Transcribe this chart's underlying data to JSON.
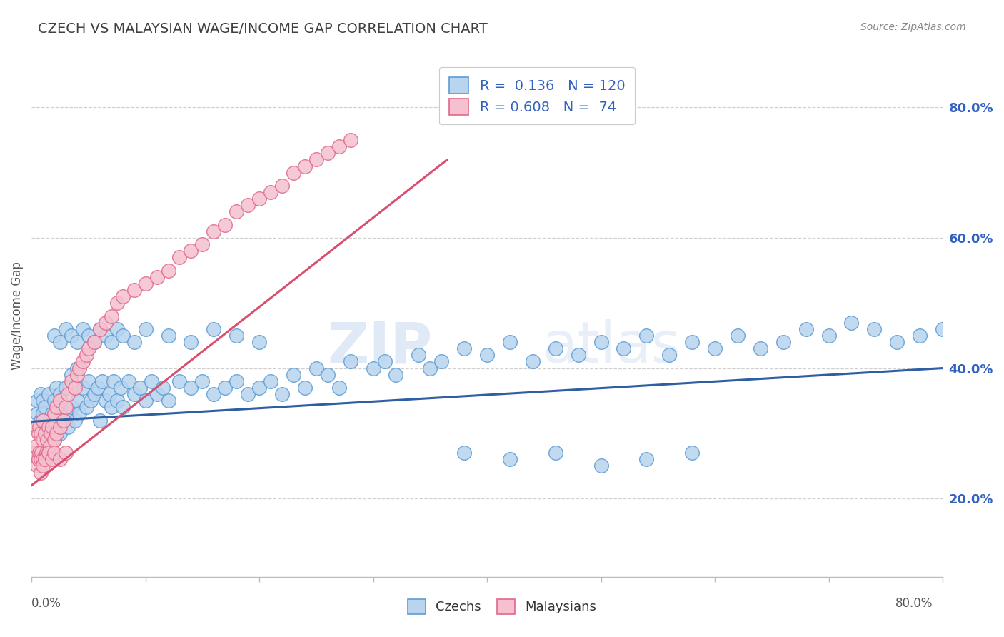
{
  "title": "CZECH VS MALAYSIAN WAGE/INCOME GAP CORRELATION CHART",
  "source_text": "Source: ZipAtlas.com",
  "ylabel": "Wage/Income Gap",
  "xmin": 0.0,
  "xmax": 0.8,
  "ymin": 0.08,
  "ymax": 0.88,
  "czech_color": "#b8d4ee",
  "czech_edge_color": "#5b9bd5",
  "malaysian_color": "#f5c0d0",
  "malaysian_edge_color": "#e06888",
  "trend_czech_color": "#2e5fa3",
  "trend_malaysian_color": "#d85070",
  "legend_text_color": "#3060c0",
  "legend_R_czech": "0.136",
  "legend_N_czech": "120",
  "legend_R_malay": "0.608",
  "legend_N_malay": "74",
  "watermark_zip": "ZIP",
  "watermark_atlas": "atlas",
  "background_color": "#ffffff",
  "grid_color": "#d0d0d0",
  "title_color": "#404040",
  "czech_trend_x0": 0.0,
  "czech_trend_x1": 0.8,
  "czech_trend_y0": 0.318,
  "czech_trend_y1": 0.4,
  "malay_trend_x0": 0.0,
  "malay_trend_x1": 0.365,
  "malay_trend_y0": 0.22,
  "malay_trend_y1": 0.72,
  "czech_x": [
    0.005,
    0.005,
    0.008,
    0.008,
    0.01,
    0.01,
    0.012,
    0.012,
    0.015,
    0.015,
    0.018,
    0.02,
    0.02,
    0.022,
    0.022,
    0.025,
    0.025,
    0.028,
    0.03,
    0.03,
    0.032,
    0.035,
    0.035,
    0.038,
    0.04,
    0.04,
    0.042,
    0.045,
    0.048,
    0.05,
    0.052,
    0.055,
    0.058,
    0.06,
    0.062,
    0.065,
    0.068,
    0.07,
    0.072,
    0.075,
    0.078,
    0.08,
    0.085,
    0.09,
    0.095,
    0.1,
    0.105,
    0.11,
    0.115,
    0.12,
    0.13,
    0.14,
    0.15,
    0.16,
    0.17,
    0.18,
    0.19,
    0.2,
    0.21,
    0.22,
    0.23,
    0.24,
    0.25,
    0.26,
    0.27,
    0.28,
    0.3,
    0.31,
    0.32,
    0.34,
    0.35,
    0.36,
    0.38,
    0.4,
    0.42,
    0.44,
    0.46,
    0.48,
    0.5,
    0.52,
    0.54,
    0.56,
    0.58,
    0.6,
    0.62,
    0.64,
    0.66,
    0.68,
    0.7,
    0.72,
    0.74,
    0.76,
    0.78,
    0.8,
    0.38,
    0.42,
    0.46,
    0.5,
    0.54,
    0.58,
    0.02,
    0.025,
    0.03,
    0.035,
    0.04,
    0.045,
    0.05,
    0.055,
    0.06,
    0.065,
    0.07,
    0.075,
    0.08,
    0.09,
    0.1,
    0.12,
    0.14,
    0.16,
    0.18,
    0.2
  ],
  "czech_y": [
    0.33,
    0.35,
    0.32,
    0.36,
    0.33,
    0.35,
    0.3,
    0.34,
    0.31,
    0.36,
    0.33,
    0.29,
    0.35,
    0.31,
    0.37,
    0.3,
    0.36,
    0.32,
    0.33,
    0.37,
    0.31,
    0.34,
    0.39,
    0.32,
    0.35,
    0.4,
    0.33,
    0.37,
    0.34,
    0.38,
    0.35,
    0.36,
    0.37,
    0.32,
    0.38,
    0.35,
    0.36,
    0.34,
    0.38,
    0.35,
    0.37,
    0.34,
    0.38,
    0.36,
    0.37,
    0.35,
    0.38,
    0.36,
    0.37,
    0.35,
    0.38,
    0.37,
    0.38,
    0.36,
    0.37,
    0.38,
    0.36,
    0.37,
    0.38,
    0.36,
    0.39,
    0.37,
    0.4,
    0.39,
    0.37,
    0.41,
    0.4,
    0.41,
    0.39,
    0.42,
    0.4,
    0.41,
    0.43,
    0.42,
    0.44,
    0.41,
    0.43,
    0.42,
    0.44,
    0.43,
    0.45,
    0.42,
    0.44,
    0.43,
    0.45,
    0.43,
    0.44,
    0.46,
    0.45,
    0.47,
    0.46,
    0.44,
    0.45,
    0.46,
    0.27,
    0.26,
    0.27,
    0.25,
    0.26,
    0.27,
    0.45,
    0.44,
    0.46,
    0.45,
    0.44,
    0.46,
    0.45,
    0.44,
    0.46,
    0.45,
    0.44,
    0.46,
    0.45,
    0.44,
    0.46,
    0.45,
    0.44,
    0.46,
    0.45,
    0.44
  ],
  "malay_x": [
    0.003,
    0.004,
    0.005,
    0.005,
    0.006,
    0.006,
    0.007,
    0.007,
    0.008,
    0.008,
    0.009,
    0.01,
    0.01,
    0.01,
    0.012,
    0.012,
    0.013,
    0.014,
    0.015,
    0.015,
    0.016,
    0.017,
    0.018,
    0.018,
    0.02,
    0.02,
    0.022,
    0.022,
    0.025,
    0.025,
    0.028,
    0.03,
    0.032,
    0.035,
    0.038,
    0.04,
    0.042,
    0.045,
    0.048,
    0.05,
    0.055,
    0.06,
    0.065,
    0.07,
    0.075,
    0.08,
    0.09,
    0.1,
    0.11,
    0.12,
    0.13,
    0.14,
    0.15,
    0.16,
    0.17,
    0.18,
    0.19,
    0.2,
    0.21,
    0.22,
    0.23,
    0.24,
    0.25,
    0.26,
    0.27,
    0.28,
    0.008,
    0.01,
    0.012,
    0.015,
    0.018,
    0.02,
    0.025,
    0.03
  ],
  "malay_y": [
    0.27,
    0.28,
    0.25,
    0.31,
    0.26,
    0.3,
    0.27,
    0.31,
    0.26,
    0.3,
    0.27,
    0.26,
    0.29,
    0.32,
    0.26,
    0.3,
    0.27,
    0.29,
    0.27,
    0.31,
    0.28,
    0.3,
    0.27,
    0.31,
    0.29,
    0.33,
    0.3,
    0.34,
    0.31,
    0.35,
    0.32,
    0.34,
    0.36,
    0.38,
    0.37,
    0.39,
    0.4,
    0.41,
    0.42,
    0.43,
    0.44,
    0.46,
    0.47,
    0.48,
    0.5,
    0.51,
    0.52,
    0.53,
    0.54,
    0.55,
    0.57,
    0.58,
    0.59,
    0.61,
    0.62,
    0.64,
    0.65,
    0.66,
    0.67,
    0.68,
    0.7,
    0.71,
    0.72,
    0.73,
    0.74,
    0.75,
    0.24,
    0.25,
    0.26,
    0.27,
    0.26,
    0.27,
    0.26,
    0.27
  ]
}
